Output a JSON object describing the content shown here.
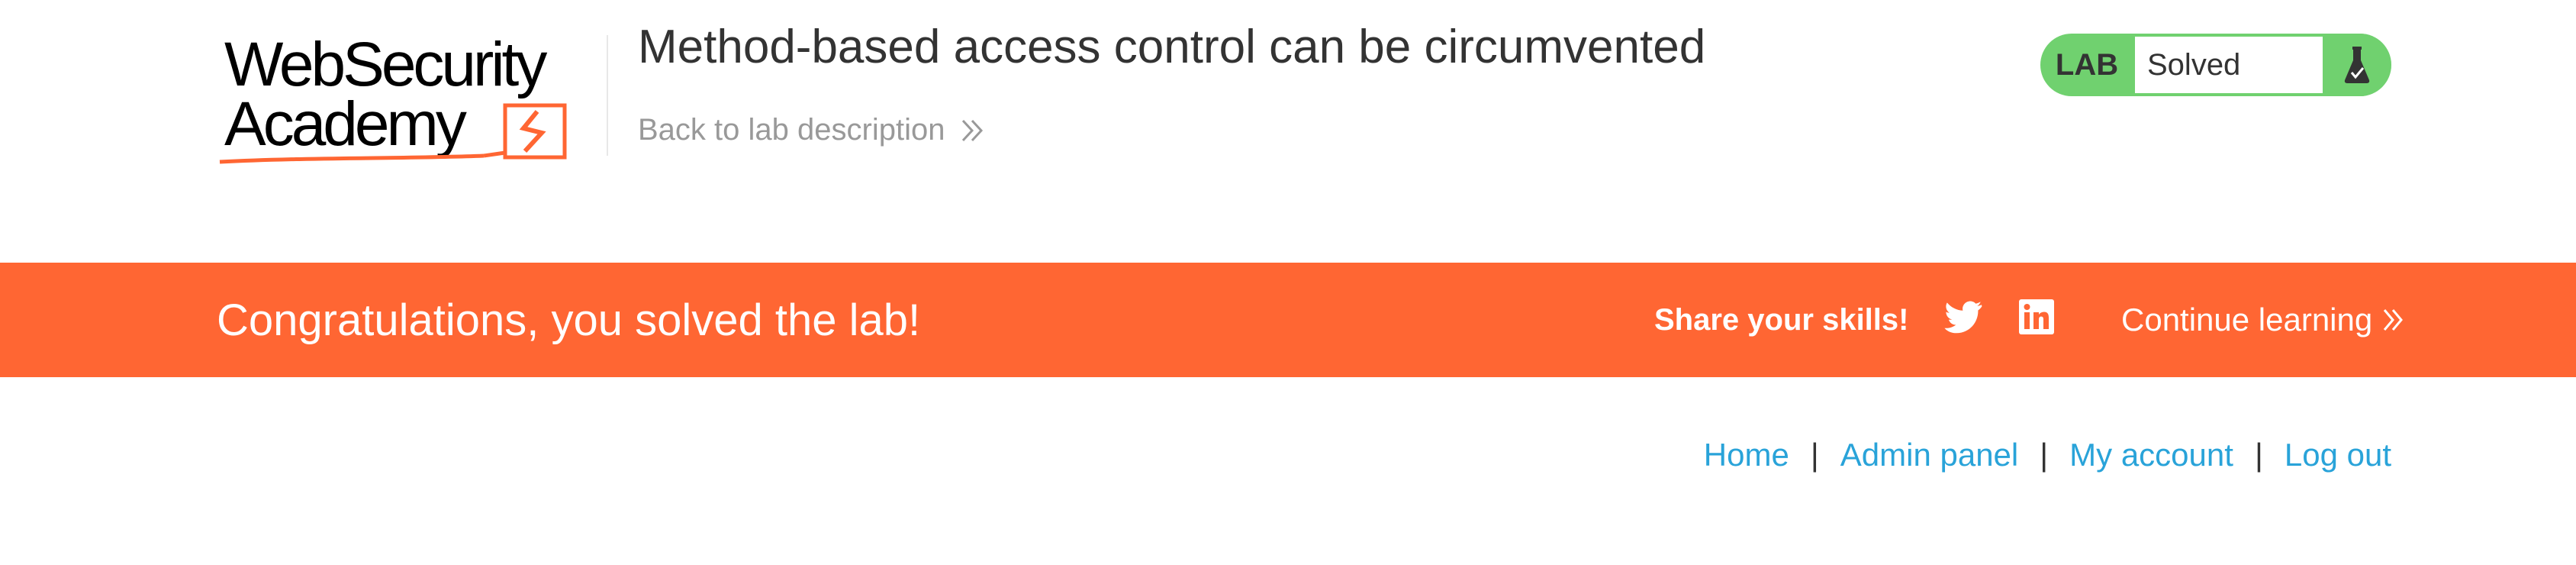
{
  "header": {
    "logo": {
      "line1": "WebSecurity",
      "line2": "Academy",
      "brand_color": "#ff6633"
    },
    "lab_title": "Method-based access control can be circumvented",
    "back_link": {
      "label": "Back to lab description",
      "icon": "double-chevron-right-icon"
    }
  },
  "lab_status": {
    "tag": "LAB",
    "state": "Solved",
    "icon": "flask-icon",
    "color": "#70d16f"
  },
  "banner": {
    "message": "Congratulations, you solved the lab!",
    "share_label": "Share your skills!",
    "share_icons": [
      "twitter-icon",
      "linkedin-icon"
    ],
    "continue_label": "Continue learning",
    "background": "#ff6633"
  },
  "nav": {
    "items": [
      {
        "label": "Home"
      },
      {
        "label": "Admin panel"
      },
      {
        "label": "My account"
      },
      {
        "label": "Log out"
      }
    ],
    "separator": "|",
    "link_color": "#29a3d9"
  }
}
